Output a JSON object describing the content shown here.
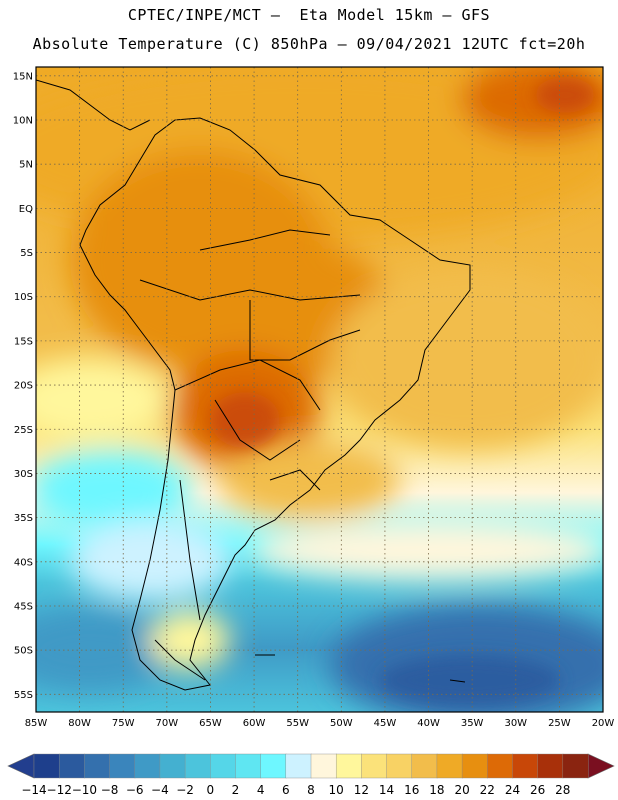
{
  "header": {
    "line1": "CPTEC/INPE/MCT –  Eta Model 15km – GFS",
    "line2": "Absolute Temperature (C) 850hPa – 09/04/2021 12UTC fct=20h"
  },
  "map": {
    "lat_labels": [
      "15N",
      "10N",
      "5N",
      "EQ",
      "5S",
      "10S",
      "15S",
      "20S",
      "25S",
      "30S",
      "35S",
      "40S",
      "45S",
      "50S",
      "55S"
    ],
    "lon_labels": [
      "85W",
      "80W",
      "75W",
      "70W",
      "65W",
      "60W",
      "55W",
      "50W",
      "45W",
      "40W",
      "35W",
      "30W",
      "25W",
      "20W"
    ],
    "lon_range": [
      -85,
      -20
    ],
    "lat_range": [
      -57,
      16
    ],
    "grid": "dotted"
  },
  "colorbar": {
    "labels": [
      "-14",
      "-12",
      "-10",
      "-8",
      "-6",
      "-4",
      "-2",
      "0",
      "2",
      "4",
      "6",
      "8",
      "10",
      "12",
      "14",
      "16",
      "18",
      "20",
      "22",
      "24",
      "26",
      "28"
    ],
    "colors": [
      "#1e3f8c",
      "#2b5a9e",
      "#3470ad",
      "#3a85bc",
      "#3f9ac6",
      "#44b0d0",
      "#4cc4dc",
      "#55d6e8",
      "#5fe6f2",
      "#6ef7ff",
      "#cdf2ff",
      "#fff6dc",
      "#fff79c",
      "#fbe27a",
      "#f8d264",
      "#f2bd4b",
      "#efaa26",
      "#e78f10",
      "#dd6a06",
      "#c84708",
      "#a8300a",
      "#8a2410"
    ],
    "under_color": "#223e8e",
    "over_color": "#7a0f20"
  }
}
